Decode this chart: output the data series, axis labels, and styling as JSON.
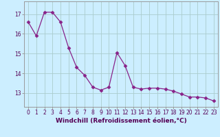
{
  "x": [
    0,
    1,
    2,
    3,
    4,
    5,
    6,
    7,
    8,
    9,
    10,
    11,
    12,
    13,
    14,
    15,
    16,
    17,
    18,
    19,
    20,
    21,
    22,
    23
  ],
  "y": [
    16.6,
    15.9,
    17.1,
    17.1,
    16.6,
    15.3,
    14.3,
    13.9,
    13.3,
    13.15,
    13.3,
    15.05,
    14.4,
    13.3,
    13.2,
    13.25,
    13.25,
    13.2,
    13.1,
    12.95,
    12.8,
    12.8,
    12.75,
    12.6
  ],
  "line_color": "#882288",
  "marker": "D",
  "marker_size": 2.5,
  "bg_color": "#cceeff",
  "grid_color": "#aacccc",
  "xlabel": "Windchill (Refroidissement éolien,°C)",
  "ylim": [
    12.3,
    17.65
  ],
  "yticks": [
    13,
    14,
    15,
    16,
    17
  ],
  "xlim": [
    -0.5,
    23.5
  ],
  "xticks": [
    0,
    1,
    2,
    3,
    4,
    5,
    6,
    7,
    8,
    9,
    10,
    11,
    12,
    13,
    14,
    15,
    16,
    17,
    18,
    19,
    20,
    21,
    22,
    23
  ],
  "tick_fontsize": 5.5,
  "xlabel_fontsize": 6.5,
  "spine_color": "#999999"
}
